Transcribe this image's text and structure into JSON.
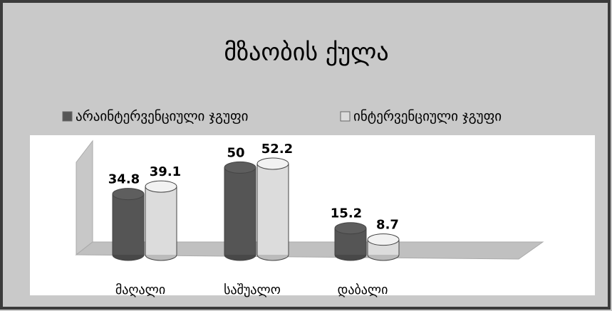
{
  "chart_data": {
    "type": "bar",
    "title": "მზაობის ქულა",
    "categories": [
      "მაღალი",
      "საშუალო",
      "დაბალი"
    ],
    "series": [
      {
        "name": "არაინტერვენციული ჯგუფი",
        "color": "#555555",
        "values": [
          34.8,
          50,
          15.2
        ]
      },
      {
        "name": "ინტერვენციული ჯგუფი",
        "color": "#dcdcdc",
        "values": [
          39.1,
          52.2,
          8.7
        ]
      }
    ],
    "legend": "top"
  }
}
